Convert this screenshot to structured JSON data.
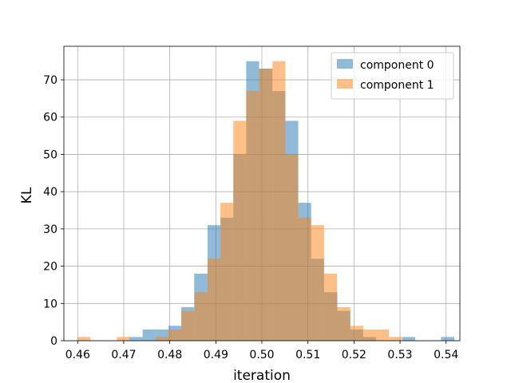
{
  "chart_data": {
    "type": "histogram",
    "title": "",
    "xlabel": "iteration",
    "ylabel": "KL",
    "xlim": [
      0.457,
      0.543
    ],
    "ylim": [
      0,
      79
    ],
    "x_ticks": [
      0.46,
      0.47,
      0.48,
      0.49,
      0.5,
      0.51,
      0.52,
      0.53,
      0.54
    ],
    "x_tick_labels": [
      "0.46",
      "0.47",
      "0.48",
      "0.49",
      "0.50",
      "0.51",
      "0.52",
      "0.53",
      "0.54"
    ],
    "y_ticks": [
      0,
      10,
      20,
      30,
      40,
      50,
      60,
      70
    ],
    "y_tick_labels": [
      "0",
      "10",
      "20",
      "30",
      "40",
      "50",
      "60",
      "70"
    ],
    "grid": true,
    "legend_position": "top-right",
    "series": [
      {
        "name": "component 0",
        "color": "#1f77b4",
        "opacity": 0.5,
        "bins": [
          [
            0.4712,
            0.4741,
            1
          ],
          [
            0.4741,
            0.4769,
            3
          ],
          [
            0.4769,
            0.4797,
            3
          ],
          [
            0.4797,
            0.4825,
            4
          ],
          [
            0.4825,
            0.4853,
            9
          ],
          [
            0.4853,
            0.4882,
            18
          ],
          [
            0.4882,
            0.491,
            31
          ],
          [
            0.491,
            0.4938,
            33
          ],
          [
            0.4938,
            0.4966,
            50
          ],
          [
            0.4966,
            0.4994,
            75
          ],
          [
            0.4994,
            0.5023,
            73
          ],
          [
            0.5023,
            0.5051,
            67
          ],
          [
            0.5051,
            0.5079,
            59
          ],
          [
            0.5079,
            0.5107,
            37
          ],
          [
            0.5107,
            0.5135,
            22
          ],
          [
            0.5135,
            0.5164,
            13
          ],
          [
            0.5164,
            0.5192,
            8
          ],
          [
            0.5192,
            0.522,
            3
          ],
          [
            0.522,
            0.5248,
            1
          ],
          [
            0.5305,
            0.5333,
            1
          ],
          [
            0.5389,
            0.5418,
            1
          ]
        ]
      },
      {
        "name": "component 1",
        "color": "#ff7f0e",
        "opacity": 0.5,
        "bins": [
          [
            0.46,
            0.4628,
            1
          ],
          [
            0.4685,
            0.4713,
            1
          ],
          [
            0.4769,
            0.4797,
            1
          ],
          [
            0.4797,
            0.4825,
            3
          ],
          [
            0.4825,
            0.4854,
            8
          ],
          [
            0.4854,
            0.4882,
            13
          ],
          [
            0.4882,
            0.491,
            22
          ],
          [
            0.491,
            0.4938,
            37
          ],
          [
            0.4938,
            0.4966,
            59
          ],
          [
            0.4966,
            0.4994,
            67
          ],
          [
            0.4994,
            0.5023,
            73
          ],
          [
            0.5023,
            0.5051,
            75
          ],
          [
            0.5051,
            0.5079,
            50
          ],
          [
            0.5079,
            0.5107,
            33
          ],
          [
            0.5107,
            0.5135,
            31
          ],
          [
            0.5135,
            0.5163,
            18
          ],
          [
            0.5163,
            0.5192,
            9
          ],
          [
            0.5192,
            0.522,
            4
          ],
          [
            0.522,
            0.5248,
            3
          ],
          [
            0.5248,
            0.5276,
            3
          ],
          [
            0.5276,
            0.5304,
            1
          ]
        ]
      }
    ]
  }
}
